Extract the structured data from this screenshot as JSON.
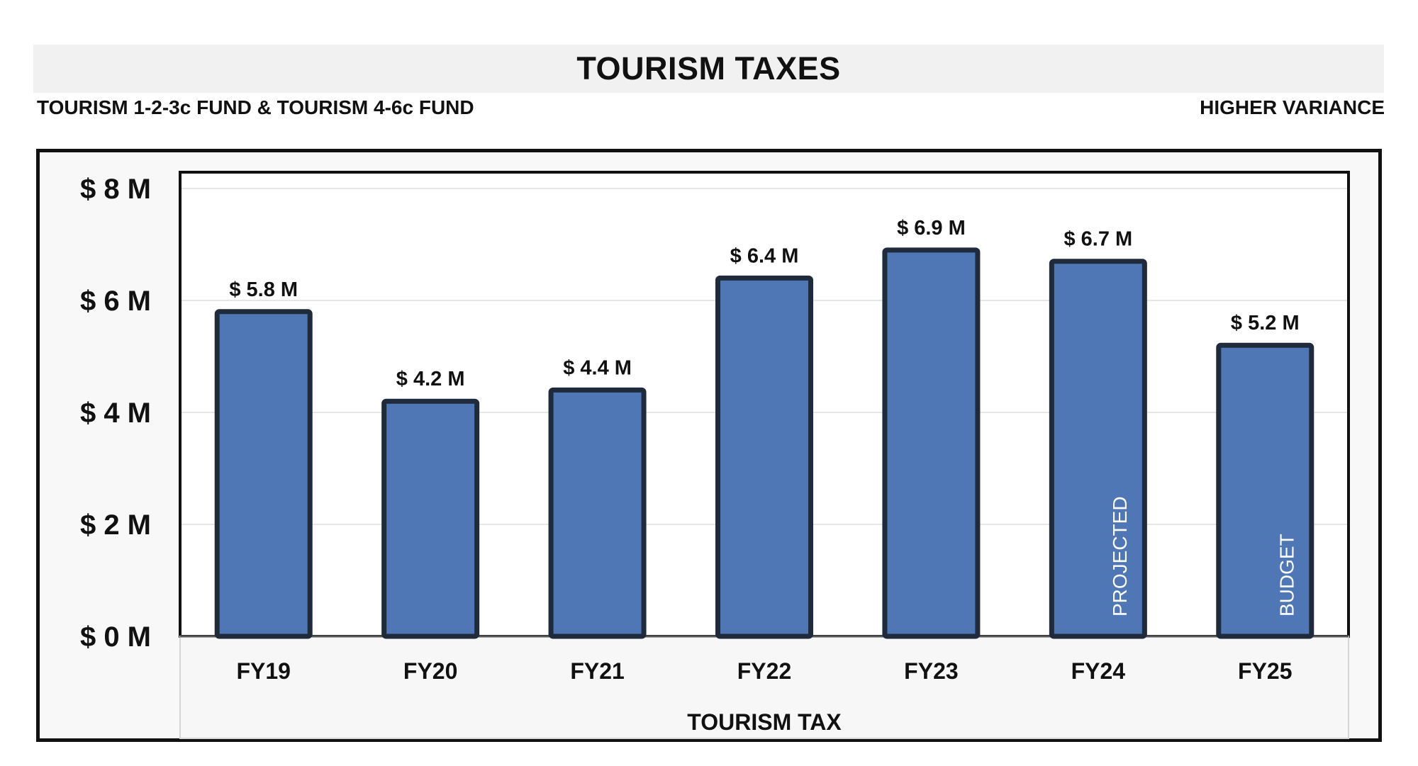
{
  "header": {
    "title": "TOURISM TAXES",
    "subtitle_left": "TOURISM 1-2-3c FUND & TOURISM 4-6c FUND",
    "subtitle_right": "HIGHER VARIANCE"
  },
  "chart_data": {
    "type": "bar",
    "title": "TOURISM TAXES",
    "xlabel": "TOURISM TAX",
    "ylabel": "",
    "categories": [
      "FY19",
      "FY20",
      "FY21",
      "FY22",
      "FY23",
      "FY24",
      "FY25"
    ],
    "values": [
      5.8,
      4.2,
      4.4,
      6.4,
      6.9,
      6.7,
      5.2
    ],
    "data_labels": [
      "$ 5.8 M",
      "$ 4.2 M",
      "$ 4.4 M",
      "$ 6.4 M",
      "$ 6.9 M",
      "$ 6.7 M",
      "$ 5.2 M"
    ],
    "bar_notes": [
      "",
      "",
      "",
      "",
      "",
      "PROJECTED",
      "BUDGET"
    ],
    "ylim": [
      0,
      8
    ],
    "yticks": [
      0,
      2,
      4,
      6,
      8
    ],
    "ytick_labels": [
      "$ 0 M",
      "$ 2 M",
      "$ 4 M",
      "$ 6 M",
      "$ 8 M"
    ],
    "grid": true,
    "legend": "none",
    "colors": {
      "bar_fill": "#4f76b5",
      "bar_edge": "#1f2a3a",
      "grid": "#e6e6e6"
    }
  }
}
